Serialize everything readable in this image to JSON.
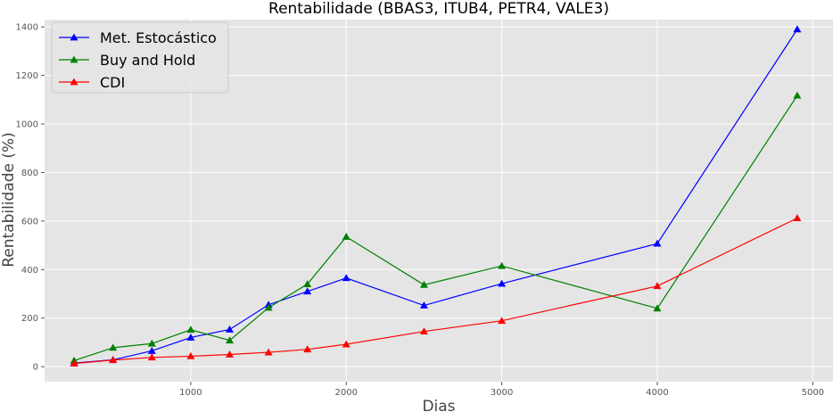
{
  "chart_data": {
    "type": "line",
    "title": "Rentabilidade (BBAS3, ITUB4, PETR4, VALE3)",
    "xlabel": "Dias",
    "ylabel": "Rentabilidade (%)",
    "xlim": [
      60,
      5130
    ],
    "ylim": [
      -62,
      1430
    ],
    "xticks": [
      1000,
      2000,
      3000,
      4000,
      5000
    ],
    "yticks": [
      0,
      200,
      400,
      600,
      800,
      1000,
      1200,
      1400
    ],
    "grid": true,
    "legend_position": "top-left",
    "x": [
      250,
      500,
      750,
      1000,
      1250,
      1500,
      1750,
      2000,
      2500,
      3000,
      4000,
      4900
    ],
    "series": [
      {
        "name": "Met. Estocástico",
        "color": "#0000ff",
        "marker": "triangle",
        "values": [
          15,
          28,
          65,
          120,
          153,
          255,
          310,
          365,
          252,
          342,
          507,
          1390
        ]
      },
      {
        "name": "Buy and Hold",
        "color": "#008000",
        "marker": "triangle",
        "values": [
          25,
          78,
          95,
          152,
          108,
          243,
          340,
          535,
          337,
          415,
          240,
          1117
        ]
      },
      {
        "name": "CDI",
        "color": "#ff0000",
        "marker": "triangle",
        "values": [
          13,
          27,
          38,
          43,
          50,
          59,
          71,
          92,
          145,
          189,
          332,
          612
        ]
      }
    ]
  }
}
